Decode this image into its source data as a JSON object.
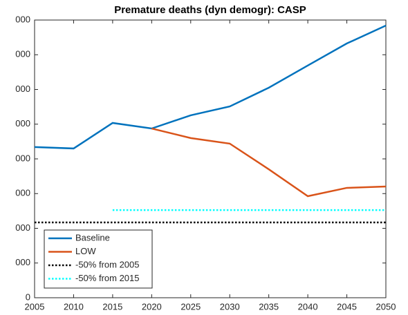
{
  "chart_data": {
    "type": "line",
    "title": "Premature deaths (dyn demogr): CASP",
    "x": [
      2005,
      2010,
      2015,
      2020,
      2025,
      2030,
      2035,
      2040,
      2045,
      2050
    ],
    "series": [
      {
        "name": "Baseline",
        "color": "#0072bd",
        "style": "solid",
        "values": [
          4340,
          4300,
          5035,
          4875,
          5255,
          5510,
          6050,
          6690,
          7325,
          7840
        ]
      },
      {
        "name": "LOW",
        "color": "#d95319",
        "style": "solid",
        "values": [
          null,
          null,
          null,
          4875,
          4600,
          4440,
          3700,
          2925,
          3165,
          3205
        ]
      },
      {
        "name": "-50% from 2005",
        "color": "#000000",
        "style": "dotted",
        "values": [
          2170,
          2170,
          2170,
          2170,
          2170,
          2170,
          2170,
          2170,
          2170,
          2170
        ]
      },
      {
        "name": "-50% from 2015",
        "color": "#00ffff",
        "style": "dotted",
        "values": [
          null,
          null,
          2525,
          2525,
          2525,
          2525,
          2525,
          2525,
          2525,
          2525
        ]
      }
    ],
    "xlim": [
      2005,
      2050
    ],
    "xticks": [
      2005,
      2010,
      2015,
      2020,
      2025,
      2030,
      2035,
      2040,
      2045,
      2050
    ],
    "ylim": [
      0,
      8000
    ],
    "yticks": [
      0,
      {
        "value": 1000,
        "label": "000"
      },
      {
        "value": 2000,
        "label": "000"
      },
      {
        "value": 3000,
        "label": "000"
      },
      {
        "value": 4000,
        "label": "000"
      },
      {
        "value": 5000,
        "label": "000"
      },
      {
        "value": 6000,
        "label": "000"
      },
      {
        "value": 7000,
        "label": "000"
      },
      {
        "value": 8000,
        "label": "000"
      }
    ],
    "legend": "lower left",
    "grid": false
  }
}
